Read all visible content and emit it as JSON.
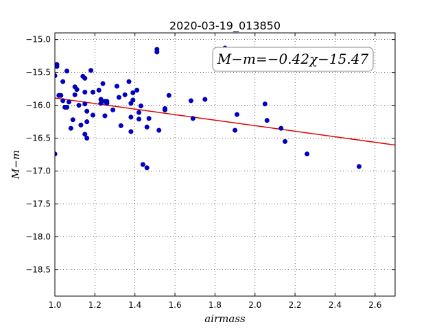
{
  "chart_data": {
    "type": "scatter",
    "title": "2020-03-19_013850",
    "xlabel": "airmass",
    "ylabel": "M−m",
    "xlim": [
      1.0,
      2.7
    ],
    "ylim": [
      -18.9,
      -14.9
    ],
    "y_inverted": true,
    "grid": true,
    "grid_style": "dotted",
    "x_ticks": [
      1.0,
      1.2,
      1.4,
      1.6,
      1.8,
      2.0,
      2.2,
      2.4,
      2.6
    ],
    "x_tick_labels": [
      "1.0",
      "1.2",
      "1.4",
      "1.6",
      "1.8",
      "2.0",
      "2.2",
      "2.4",
      "2.6"
    ],
    "y_ticks": [
      -15.0,
      -15.5,
      -16.0,
      -16.5,
      -17.0,
      -17.5,
      -18.0,
      -18.5
    ],
    "y_tick_labels": [
      "−15.0",
      "−15.5",
      "−16.0",
      "−16.5",
      "−17.0",
      "−17.5",
      "−18.0",
      "−18.5"
    ],
    "annotation": "M−m=−0.42χ−15.47",
    "annotation_placement": "top-right",
    "fit": {
      "slope": -0.42,
      "intercept": -15.47,
      "color": "#dd0000"
    },
    "marker_color": "#0000cc",
    "points": [
      [
        1.0,
        -16.74
      ],
      [
        1.01,
        -15.38
      ],
      [
        1.01,
        -15.41
      ],
      [
        1.0,
        -15.55
      ],
      [
        1.02,
        -15.85
      ],
      [
        1.03,
        -15.85
      ],
      [
        1.04,
        -15.93
      ],
      [
        1.04,
        -15.64
      ],
      [
        1.05,
        -16.03
      ],
      [
        1.06,
        -16.03
      ],
      [
        1.06,
        -15.48
      ],
      [
        1.07,
        -15.95
      ],
      [
        1.08,
        -16.35
      ],
      [
        1.09,
        -16.22
      ],
      [
        1.1,
        -15.72
      ],
      [
        1.1,
        -15.84
      ],
      [
        1.11,
        -15.76
      ],
      [
        1.12,
        -16.0
      ],
      [
        1.13,
        -16.3
      ],
      [
        1.14,
        -15.56
      ],
      [
        1.15,
        -15.59
      ],
      [
        1.15,
        -15.8
      ],
      [
        1.15,
        -15.98
      ],
      [
        1.15,
        -16.44
      ],
      [
        1.16,
        -16.5
      ],
      [
        1.16,
        -16.09
      ],
      [
        1.16,
        -16.25
      ],
      [
        1.18,
        -15.47
      ],
      [
        1.19,
        -15.8
      ],
      [
        1.19,
        -16.15
      ],
      [
        1.22,
        -15.77
      ],
      [
        1.23,
        -15.97
      ],
      [
        1.23,
        -15.91
      ],
      [
        1.24,
        -15.67
      ],
      [
        1.25,
        -16.16
      ],
      [
        1.25,
        -15.94
      ],
      [
        1.26,
        -15.94
      ],
      [
        1.26,
        -15.97
      ],
      [
        1.29,
        -16.07
      ],
      [
        1.31,
        -15.71
      ],
      [
        1.32,
        -15.88
      ],
      [
        1.33,
        -16.31
      ],
      [
        1.35,
        -15.84
      ],
      [
        1.37,
        -15.64
      ],
      [
        1.38,
        -15.97
      ],
      [
        1.38,
        -16.4
      ],
      [
        1.38,
        -16.18
      ],
      [
        1.39,
        -15.81
      ],
      [
        1.39,
        -15.92
      ],
      [
        1.41,
        -15.77
      ],
      [
        1.42,
        -16.11
      ],
      [
        1.42,
        -16.21
      ],
      [
        1.43,
        -16.01
      ],
      [
        1.44,
        -16.9
      ],
      [
        1.46,
        -16.95
      ],
      [
        1.46,
        -16.33
      ],
      [
        1.47,
        -16.2
      ],
      [
        1.51,
        -15.15
      ],
      [
        1.51,
        -15.19
      ],
      [
        1.52,
        -16.38
      ],
      [
        1.55,
        -16.07
      ],
      [
        1.55,
        -16.05
      ],
      [
        1.57,
        -15.85
      ],
      [
        1.68,
        -15.93
      ],
      [
        1.69,
        -16.2
      ],
      [
        1.75,
        -15.91
      ],
      [
        1.85,
        -15.13
      ],
      [
        1.9,
        -16.38
      ],
      [
        1.91,
        -16.14
      ],
      [
        2.05,
        -15.98
      ],
      [
        2.06,
        -16.23
      ],
      [
        2.13,
        -16.35
      ],
      [
        2.15,
        -16.55
      ],
      [
        2.26,
        -16.74
      ],
      [
        2.52,
        -16.93
      ]
    ]
  }
}
